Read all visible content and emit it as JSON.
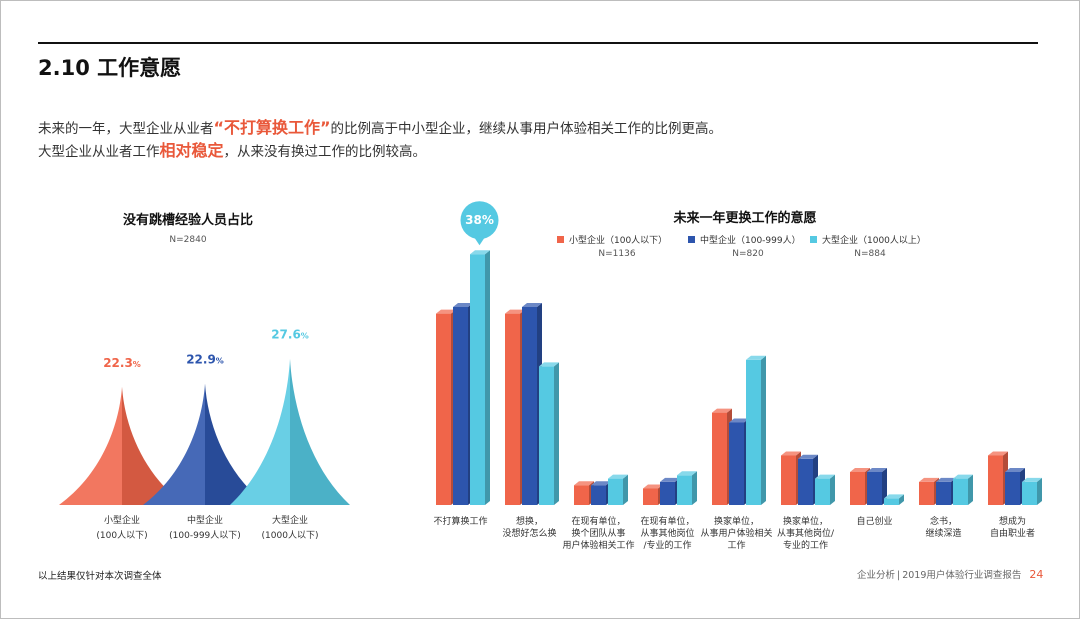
{
  "section_title": "2.10 工作意愿",
  "intro": {
    "line1_a": "未来的一年，大型企业从业者",
    "line1_hl": "“不打算换工作”",
    "line1_b": "的比例高于中小型企业，继续从事用户体验相关工作的比例更高。",
    "line2_a": "大型企业从业者工作",
    "line2_hl": "相对稳定",
    "line2_b": "，从来没有换过工作的比例较高。"
  },
  "colors": {
    "small": "#f0654a",
    "medium": "#2d55ad",
    "large": "#55c9e2",
    "accent": "#e9583a"
  },
  "chart_data": [
    {
      "type": "area",
      "title": "没有跳槽经验人员占比",
      "subtitle": "N=2840",
      "categories": [
        {
          "name": "小型企业",
          "sub": "(100人以下)",
          "value": 22.3,
          "label": "22.3%"
        },
        {
          "name": "中型企业",
          "sub": "(100-999人以下)",
          "value": 22.9,
          "label": "22.9%"
        },
        {
          "name": "大型企业",
          "sub": "(1000人以下)",
          "value": 27.6,
          "label": "27.6%"
        }
      ]
    },
    {
      "type": "bar",
      "title": "未来一年更换工作的意愿",
      "callout": "38%",
      "categories": [
        [
          "不打算换工作"
        ],
        [
          "想换，",
          "没想好怎么换"
        ],
        [
          "在现有单位，",
          "换个团队从事",
          "用户体验相关工作"
        ],
        [
          "在现有单位，",
          "从事其他岗位",
          "/专业的工作"
        ],
        [
          "换家单位，",
          "从事用户体验相关",
          "工作"
        ],
        [
          "换家单位，",
          "从事其他岗位/",
          "专业的工作"
        ],
        [
          "自己创业"
        ],
        [
          "念书，",
          "继续深造"
        ],
        [
          "想成为",
          "自由职业者"
        ]
      ],
      "series": [
        {
          "name": "小型企业（100人以下）",
          "n": "N=1136",
          "values": [
            29,
            29,
            3,
            2.5,
            14,
            7.5,
            5,
            3.5,
            7.5
          ]
        },
        {
          "name": "中型企业（100-999人）",
          "n": "N=820",
          "values": [
            30,
            30,
            3,
            3.5,
            12.5,
            7,
            5,
            3.5,
            5
          ]
        },
        {
          "name": "大型企业（1000人以上）",
          "n": "N=884",
          "values": [
            38,
            21,
            4,
            4.5,
            22,
            4,
            1,
            4,
            3.5
          ]
        }
      ],
      "ylim": [
        0,
        40
      ]
    }
  ],
  "footnote": "以上结果仅针对本次调查全体",
  "footer": {
    "section": "企业分析",
    "separator": "|",
    "report": "2019用户体验行业调查报告",
    "page": "24"
  }
}
